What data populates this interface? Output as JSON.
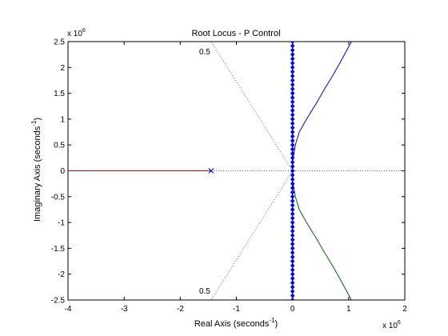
{
  "chart_data": {
    "type": "line",
    "title": "Root Locus - P Control",
    "xlabel": "Real Axis (seconds",
    "xlabel_sup": "-1",
    "xlabel_close": ")",
    "ylabel": "Imaginary Axis (seconds",
    "ylabel_sup": "-1",
    "ylabel_close": ")",
    "x_multiplier_text": "x 10",
    "x_multiplier_exp": "6",
    "y_multiplier_text": "x 10",
    "y_multiplier_exp": "6",
    "xlim": [
      -4,
      2
    ],
    "ylim": [
      -2.5,
      2.5
    ],
    "x_ticks": [
      -4,
      -3,
      -2,
      -1,
      0,
      1,
      2
    ],
    "x_tick_labels": [
      "-4",
      "-3",
      "-2",
      "-1",
      "0",
      "1",
      "2"
    ],
    "y_ticks": [
      2.5,
      2,
      1.5,
      1,
      0.5,
      0,
      -0.5,
      -1,
      -1.5,
      -2,
      -2.5
    ],
    "y_tick_labels": [
      "2.5",
      "2",
      "1.5",
      "1",
      "0.5",
      "0",
      "-0.5",
      "-1",
      "-1.5",
      "-2",
      "-2.5"
    ],
    "grid": false,
    "damping_lines": [
      {
        "zeta": 0.5,
        "label": "0.5",
        "end": [
          -1.45,
          2.5
        ]
      },
      {
        "zeta": 0.5,
        "label": "0.5",
        "end": [
          -1.45,
          -2.5
        ]
      }
    ],
    "pole_marker": {
      "x": -1.45,
      "y": 0
    },
    "series": [
      {
        "color": "#cc0000",
        "points": [
          [
            -4,
            0
          ],
          [
            -1.45,
            0
          ]
        ]
      },
      {
        "color": "#0000cc",
        "points": [
          [
            0,
            0
          ],
          [
            0.005,
            0.2
          ],
          [
            0.05,
            0.5
          ],
          [
            0.12,
            0.75
          ],
          [
            0.25,
            1.0
          ],
          [
            0.42,
            1.3
          ],
          [
            0.58,
            1.6
          ],
          [
            0.72,
            1.85
          ],
          [
            0.85,
            2.1
          ],
          [
            0.95,
            2.3
          ],
          [
            1.05,
            2.5
          ]
        ]
      },
      {
        "color": "#006600",
        "points": [
          [
            0,
            0
          ],
          [
            0.005,
            -0.2
          ],
          [
            0.05,
            -0.5
          ],
          [
            0.12,
            -0.75
          ],
          [
            0.25,
            -1.0
          ],
          [
            0.42,
            -1.3
          ],
          [
            0.58,
            -1.6
          ],
          [
            0.72,
            -1.85
          ],
          [
            0.85,
            -2.1
          ],
          [
            0.95,
            -2.3
          ],
          [
            1.05,
            -2.5
          ]
        ]
      }
    ],
    "marker_series": {
      "color": "#0000ff",
      "x": 0,
      "y_from": -2.5,
      "y_to": 2.5,
      "count": 61
    }
  }
}
